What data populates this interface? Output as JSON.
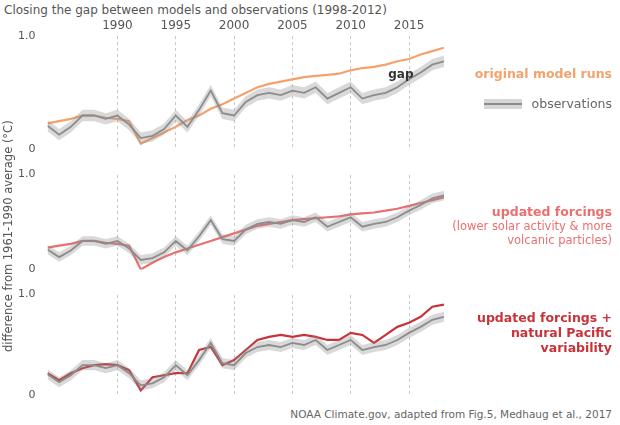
{
  "chart_data": [
    {
      "type": "line",
      "title": "Closing the gap between models and observations (1998-2012)",
      "x": [
        1984,
        1985,
        1986,
        1987,
        1988,
        1989,
        1990,
        1991,
        1992,
        1993,
        1994,
        1995,
        1996,
        1997,
        1998,
        1999,
        2000,
        2001,
        2002,
        2003,
        2004,
        2005,
        2006,
        2007,
        2008,
        2009,
        2010,
        2011,
        2012,
        2013,
        2014,
        2015,
        2016,
        2017,
        2018
      ],
      "xlim": [
        1984,
        2018
      ],
      "xticks": [
        1990,
        1995,
        2000,
        2005,
        2010,
        2015
      ],
      "ylim": [
        0,
        1.0
      ],
      "yticks": [
        {
          "value": 0,
          "label": "0"
        },
        {
          "value": 1.0,
          "label": "1.0"
        }
      ],
      "grid": true,
      "legend": "right",
      "annotations": [
        {
          "text": "gap",
          "x": 2014.3,
          "y": 0.66
        }
      ],
      "series": [
        {
          "name": "observations",
          "color": "#8c8c8c",
          "uncertainty": 0.05,
          "values": [
            0.21,
            0.13,
            0.2,
            0.3,
            0.3,
            0.27,
            0.3,
            0.22,
            0.1,
            0.12,
            0.18,
            0.3,
            0.2,
            0.35,
            0.52,
            0.32,
            0.3,
            0.42,
            0.48,
            0.5,
            0.48,
            0.52,
            0.5,
            0.55,
            0.45,
            0.5,
            0.55,
            0.45,
            0.48,
            0.5,
            0.55,
            0.62,
            0.68,
            0.75,
            0.78
          ]
        },
        {
          "name": "original model runs",
          "color": "#f4a26b",
          "values": [
            0.23,
            0.25,
            0.27,
            0.3,
            0.3,
            0.28,
            0.27,
            0.25,
            0.05,
            0.1,
            0.15,
            0.2,
            0.26,
            0.3,
            0.36,
            0.4,
            0.45,
            0.5,
            0.55,
            0.58,
            0.6,
            0.62,
            0.64,
            0.65,
            0.66,
            0.67,
            0.7,
            0.72,
            0.73,
            0.75,
            0.78,
            0.8,
            0.84,
            0.87,
            0.9
          ]
        }
      ]
    },
    {
      "type": "line",
      "y_label": "difference from 1961-1990 average (°C)",
      "x": [
        1984,
        1985,
        1986,
        1987,
        1988,
        1989,
        1990,
        1991,
        1992,
        1993,
        1994,
        1995,
        1996,
        1997,
        1998,
        1999,
        2000,
        2001,
        2002,
        2003,
        2004,
        2005,
        2006,
        2007,
        2008,
        2009,
        2010,
        2011,
        2012,
        2013,
        2014,
        2015,
        2016,
        2017,
        2018
      ],
      "xlim": [
        1984,
        2018
      ],
      "xticks": [
        1990,
        1995,
        2000,
        2005,
        2010,
        2015
      ],
      "ylim": [
        0,
        1.0
      ],
      "yticks": [
        {
          "value": 0,
          "label": "0"
        },
        {
          "value": 1.0,
          "label": "1.0"
        }
      ],
      "grid": true,
      "tick_labels": "y",
      "series": [
        {
          "color": "#8c8c8c",
          "uncertainty": 0.05,
          "values": [
            0.21,
            0.13,
            0.2,
            0.3,
            0.3,
            0.27,
            0.3,
            0.22,
            0.1,
            0.12,
            0.18,
            0.3,
            0.2,
            0.35,
            0.52,
            0.32,
            0.3,
            0.42,
            0.48,
            0.5,
            0.48,
            0.52,
            0.5,
            0.55,
            0.45,
            0.5,
            0.55,
            0.45,
            0.48,
            0.5,
            0.55,
            0.62,
            0.68,
            0.75,
            0.78
          ]
        },
        {
          "name": "updated forcings",
          "note": "(lower solar activity & more volcanic particles)",
          "color": "#eb6f6f",
          "values": [
            0.23,
            0.25,
            0.27,
            0.3,
            0.3,
            0.28,
            0.27,
            0.25,
            0.0,
            0.07,
            0.13,
            0.18,
            0.22,
            0.26,
            0.3,
            0.34,
            0.38,
            0.42,
            0.46,
            0.48,
            0.5,
            0.52,
            0.53,
            0.54,
            0.55,
            0.56,
            0.58,
            0.59,
            0.6,
            0.62,
            0.64,
            0.67,
            0.7,
            0.73,
            0.76
          ]
        }
      ]
    },
    {
      "type": "line",
      "source": "NOAA Climate.gov, adapted from Fig.5, Medhaug et al., 2017",
      "x": [
        1984,
        1985,
        1986,
        1987,
        1988,
        1989,
        1990,
        1991,
        1992,
        1993,
        1994,
        1995,
        1996,
        1997,
        1998,
        1999,
        2000,
        2001,
        2002,
        2003,
        2004,
        2005,
        2006,
        2007,
        2008,
        2009,
        2010,
        2011,
        2012,
        2013,
        2014,
        2015,
        2016,
        2017,
        2018
      ],
      "xlim": [
        1984,
        2018
      ],
      "xticks": [
        1990,
        1995,
        2000,
        2005,
        2010,
        2015
      ],
      "ylim": [
        0,
        1.0
      ],
      "yticks": [
        {
          "value": 0,
          "label": "0"
        },
        {
          "value": 1.0,
          "label": "1.0"
        }
      ],
      "grid": true,
      "tick_labels": "y",
      "series": [
        {
          "color": "#8c8c8c",
          "uncertainty": 0.05,
          "values": [
            0.21,
            0.13,
            0.2,
            0.3,
            0.3,
            0.27,
            0.3,
            0.22,
            0.1,
            0.12,
            0.18,
            0.3,
            0.2,
            0.35,
            0.52,
            0.32,
            0.3,
            0.42,
            0.48,
            0.5,
            0.48,
            0.52,
            0.5,
            0.55,
            0.45,
            0.5,
            0.55,
            0.45,
            0.48,
            0.5,
            0.55,
            0.62,
            0.68,
            0.75,
            0.78
          ]
        },
        {
          "name": "updated forcings + natural Pacific variability",
          "color": "#c8333a",
          "values": [
            0.22,
            0.15,
            0.22,
            0.27,
            0.3,
            0.31,
            0.3,
            0.25,
            0.05,
            0.18,
            0.2,
            0.22,
            0.22,
            0.45,
            0.48,
            0.3,
            0.35,
            0.45,
            0.55,
            0.58,
            0.6,
            0.58,
            0.6,
            0.58,
            0.55,
            0.55,
            0.62,
            0.6,
            0.52,
            0.6,
            0.68,
            0.72,
            0.78,
            0.88,
            0.9
          ]
        }
      ]
    }
  ]
}
